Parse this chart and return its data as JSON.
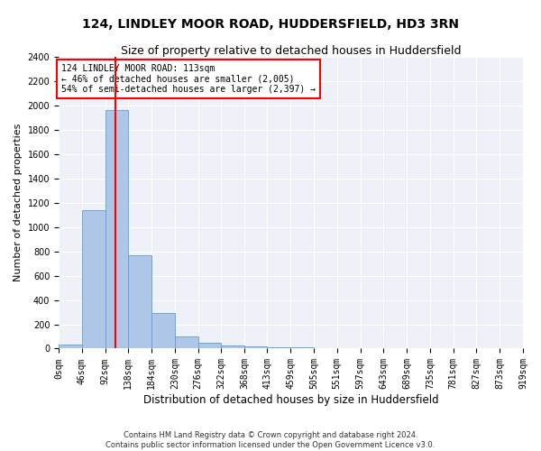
{
  "title": "124, LINDLEY MOOR ROAD, HUDDERSFIELD, HD3 3RN",
  "subtitle": "Size of property relative to detached houses in Huddersfield",
  "xlabel": "Distribution of detached houses by size in Huddersfield",
  "ylabel": "Number of detached properties",
  "bar_edges": [
    0,
    46,
    92,
    138,
    184,
    230,
    276,
    322,
    368,
    413,
    459,
    505,
    551,
    597,
    643,
    689,
    735,
    781,
    827,
    873,
    919
  ],
  "bar_heights": [
    35,
    1135,
    1960,
    770,
    295,
    100,
    50,
    25,
    15,
    10,
    8,
    5,
    4,
    3,
    3,
    2,
    2,
    2,
    2,
    2
  ],
  "bar_color": "#aec6e8",
  "bar_edgecolor": "#5a9fd4",
  "property_size": 113,
  "vline_color": "red",
  "annotation_text": "124 LINDLEY MOOR ROAD: 113sqm\n← 46% of detached houses are smaller (2,005)\n54% of semi-detached houses are larger (2,397) →",
  "annotation_box_edgecolor": "red",
  "annotation_box_facecolor": "white",
  "ylim": [
    0,
    2400
  ],
  "yticks": [
    0,
    200,
    400,
    600,
    800,
    1000,
    1200,
    1400,
    1600,
    1800,
    2000,
    2200,
    2400
  ],
  "xtick_labels": [
    "0sqm",
    "46sqm",
    "92sqm",
    "138sqm",
    "184sqm",
    "230sqm",
    "276sqm",
    "322sqm",
    "368sqm",
    "413sqm",
    "459sqm",
    "505sqm",
    "551sqm",
    "597sqm",
    "643sqm",
    "689sqm",
    "735sqm",
    "781sqm",
    "827sqm",
    "873sqm",
    "919sqm"
  ],
  "footer_text": "Contains HM Land Registry data © Crown copyright and database right 2024.\nContains public sector information licensed under the Open Government Licence v3.0.",
  "bg_color": "#eef2f8",
  "grid_color": "white",
  "title_fontsize": 10,
  "subtitle_fontsize": 9,
  "ylabel_fontsize": 8,
  "xlabel_fontsize": 8.5,
  "tick_fontsize": 7,
  "annotation_fontsize": 7,
  "footer_fontsize": 6
}
